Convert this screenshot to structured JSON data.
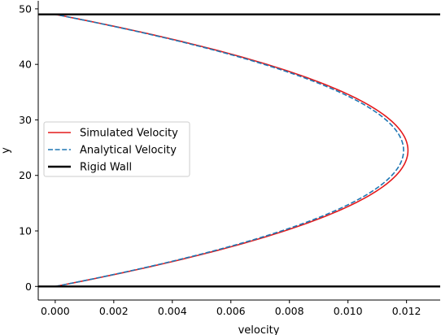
{
  "chart_data": {
    "type": "line",
    "title": "",
    "xlabel": "velocity",
    "ylabel": "y",
    "xlim": [
      -0.00058,
      0.01315
    ],
    "ylim": [
      -2.45,
      51.45
    ],
    "xticks": [
      0.0,
      0.002,
      0.004,
      0.006,
      0.008,
      0.01,
      0.012
    ],
    "xtick_labels": [
      "0.000",
      "0.002",
      "0.004",
      "0.006",
      "0.008",
      "0.010",
      "0.012"
    ],
    "yticks": [
      0,
      10,
      20,
      30,
      40,
      50
    ],
    "ytick_labels": [
      "0",
      "10",
      "20",
      "30",
      "40",
      "50"
    ],
    "grid": false,
    "legend_position": "center-left",
    "series": [
      {
        "name": "Simulated Velocity",
        "color": "#e41a1c",
        "style": "solid",
        "profile": "parabolic",
        "y_range": [
          0,
          49
        ],
        "peak_velocity": 0.01205,
        "peak_y": 24.5
      },
      {
        "name": "Analytical Velocity",
        "color": "#1f77b4",
        "style": "dashed",
        "profile": "parabolic",
        "y_range": [
          0,
          49
        ],
        "peak_velocity": 0.0119,
        "peak_y": 24.5
      },
      {
        "name": "Rigid Wall",
        "color": "#000000",
        "style": "solid",
        "walls_y": [
          0,
          49
        ]
      }
    ]
  }
}
